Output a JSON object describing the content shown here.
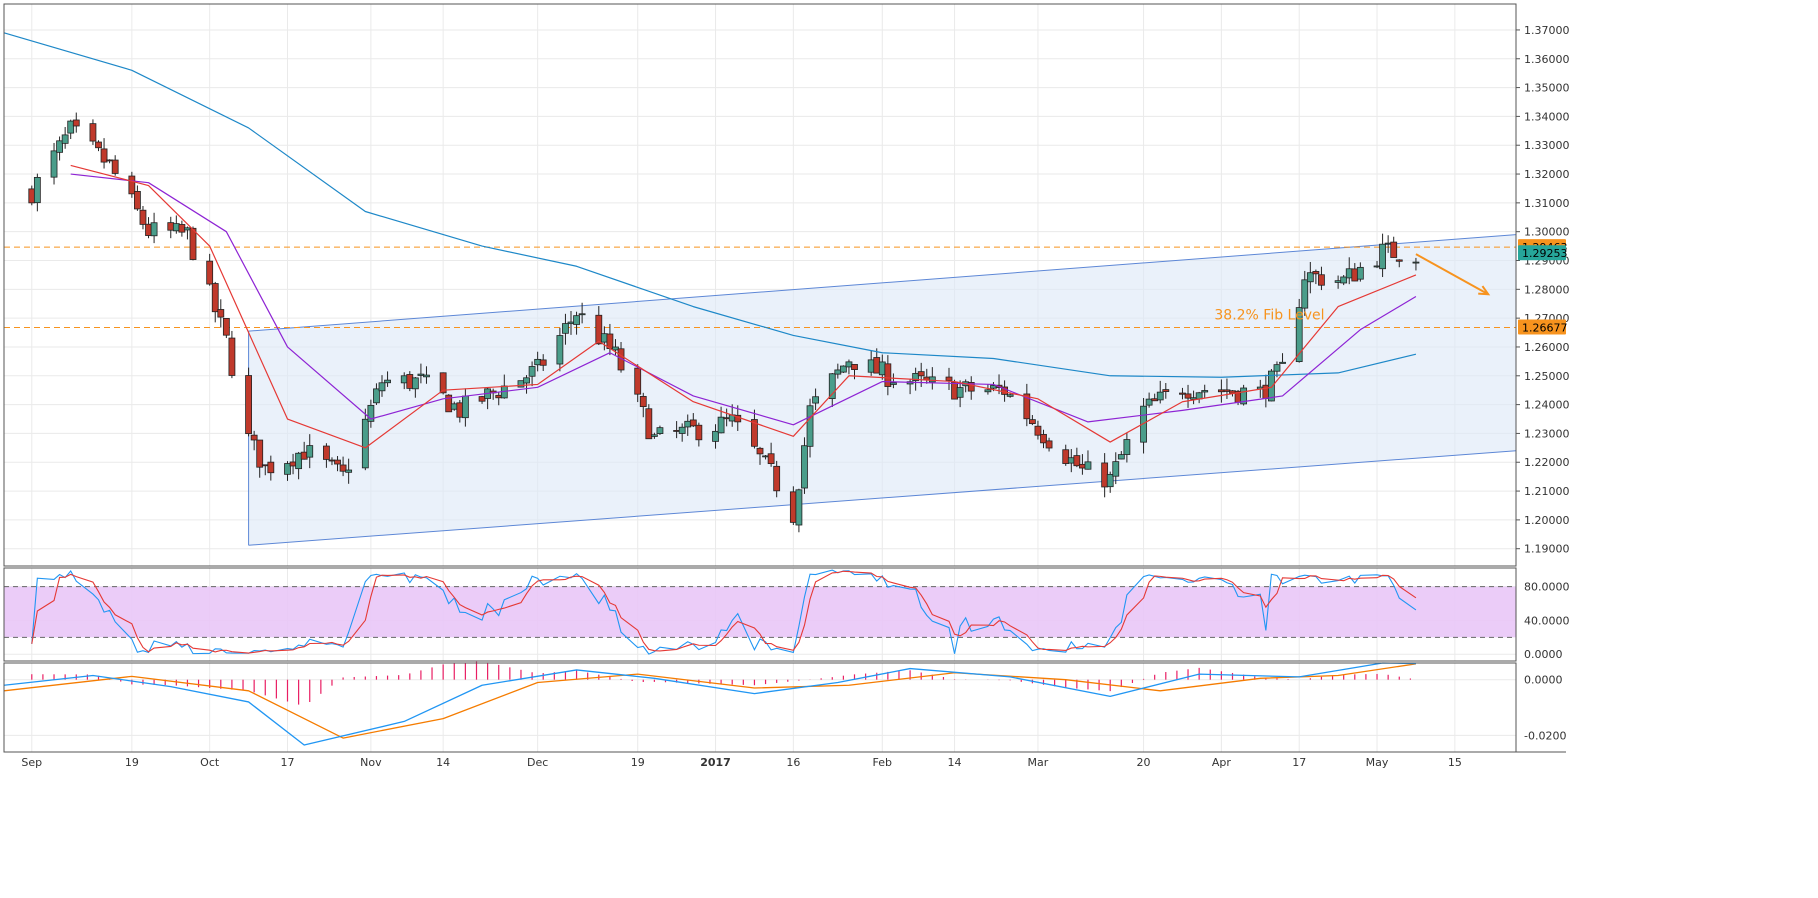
{
  "chart_data": {
    "type": "candlestick",
    "panes": [
      "price",
      "stochastic",
      "macd"
    ],
    "x_axis": {
      "tick_labels": [
        {
          "label": "Sep",
          "date": "2016-09-01"
        },
        {
          "label": "19",
          "date": "2016-09-19"
        },
        {
          "label": "Oct",
          "date": "2016-10-03"
        },
        {
          "label": "17",
          "date": "2016-10-17"
        },
        {
          "label": "Nov",
          "date": "2016-11-01"
        },
        {
          "label": "14",
          "date": "2016-11-14"
        },
        {
          "label": "Dec",
          "date": "2016-12-01"
        },
        {
          "label": "19",
          "date": "2016-12-19"
        },
        {
          "label": "2017",
          "date": "2017-01-02",
          "bold": true
        },
        {
          "label": "16",
          "date": "2017-01-16"
        },
        {
          "label": "Feb",
          "date": "2017-02-01"
        },
        {
          "label": "14",
          "date": "2017-02-14"
        },
        {
          "label": "Mar",
          "date": "2017-03-01"
        },
        {
          "label": "20",
          "date": "2017-03-20"
        },
        {
          "label": "Apr",
          "date": "2017-04-03"
        },
        {
          "label": "17",
          "date": "2017-04-17"
        },
        {
          "label": "May",
          "date": "2017-05-01"
        },
        {
          "label": "15",
          "date": "2017-05-15"
        }
      ],
      "range": [
        "2016-08-27",
        "2017-05-26"
      ]
    },
    "price_pane": {
      "y_range": [
        1.184,
        1.379
      ],
      "tick_labels": [
        "1.19000",
        "1.20000",
        "1.21000",
        "1.22000",
        "1.23000",
        "1.24000",
        "1.25000",
        "1.26000",
        "1.27000",
        "1.28000",
        "1.29000",
        "1.30000",
        "1.31000",
        "1.32000",
        "1.33000",
        "1.34000",
        "1.35000",
        "1.36000",
        "1.37000"
      ],
      "price_tags": [
        {
          "label": "1.29463",
          "value": 1.29463,
          "color": "#f7931e"
        },
        {
          "label": "1.26677",
          "value": 1.26677,
          "color": "#f7931e"
        },
        {
          "label": "1.29253",
          "value": 1.29253,
          "color": "#26a69a"
        }
      ],
      "horizontal_lines": [
        {
          "value": 1.29463,
          "color": "#f7931e",
          "style": "dashed"
        },
        {
          "value": 1.26677,
          "color": "#f7931e",
          "style": "dashed"
        }
      ],
      "annotation": {
        "text": "38.2% Fib Level",
        "color": "#f7931e"
      },
      "channel": {
        "upper": [
          {
            "date": "2016-10-10",
            "value": 1.2655
          },
          {
            "date": "2017-05-26",
            "value": 1.299
          }
        ],
        "lower": [
          {
            "date": "2016-10-10",
            "value": 1.1912
          },
          {
            "date": "2017-05-26",
            "value": 1.224
          }
        ],
        "fill": "#dce8f7",
        "stroke": "#5d87d6"
      },
      "arrow": {
        "from": {
          "date": "2017-05-08",
          "value": 1.2922
        },
        "to": {
          "date": "2017-05-21",
          "value": 1.2783
        },
        "color": "#f7931e"
      },
      "candles_weekly_anchor": [
        {
          "date": "2016-09-01",
          "close": 1.314
        },
        {
          "date": "2016-09-08",
          "close": 1.335
        },
        {
          "date": "2016-09-15",
          "close": 1.323
        },
        {
          "date": "2016-09-22",
          "close": 1.3
        },
        {
          "date": "2016-09-29",
          "close": 1.299
        },
        {
          "date": "2016-10-06",
          "close": 1.262
        },
        {
          "date": "2016-10-10",
          "close": 1.228
        },
        {
          "date": "2016-10-13",
          "close": 1.218
        },
        {
          "date": "2016-10-20",
          "close": 1.224
        },
        {
          "date": "2016-10-27",
          "close": 1.215
        },
        {
          "date": "2016-11-03",
          "close": 1.248
        },
        {
          "date": "2016-11-10",
          "close": 1.248
        },
        {
          "date": "2016-11-17",
          "close": 1.238
        },
        {
          "date": "2016-11-24",
          "close": 1.245
        },
        {
          "date": "2016-12-01",
          "close": 1.252
        },
        {
          "date": "2016-12-08",
          "close": 1.272
        },
        {
          "date": "2016-12-15",
          "close": 1.257
        },
        {
          "date": "2016-12-22",
          "close": 1.228
        },
        {
          "date": "2016-12-29",
          "close": 1.231
        },
        {
          "date": "2017-01-05",
          "close": 1.234
        },
        {
          "date": "2017-01-12",
          "close": 1.216
        },
        {
          "date": "2017-01-16",
          "close": 1.202
        },
        {
          "date": "2017-01-19",
          "close": 1.238
        },
        {
          "date": "2017-01-26",
          "close": 1.256
        },
        {
          "date": "2017-02-02",
          "close": 1.25
        },
        {
          "date": "2017-02-09",
          "close": 1.247
        },
        {
          "date": "2017-02-16",
          "close": 1.245
        },
        {
          "date": "2017-02-23",
          "close": 1.245
        },
        {
          "date": "2017-03-02",
          "close": 1.23
        },
        {
          "date": "2017-03-09",
          "close": 1.217
        },
        {
          "date": "2017-03-14",
          "close": 1.214
        },
        {
          "date": "2017-03-20",
          "close": 1.238
        },
        {
          "date": "2017-03-27",
          "close": 1.246
        },
        {
          "date": "2017-04-03",
          "close": 1.245
        },
        {
          "date": "2017-04-10",
          "close": 1.244
        },
        {
          "date": "2017-04-14",
          "close": 1.252
        },
        {
          "date": "2017-04-18",
          "close": 1.285
        },
        {
          "date": "2017-04-25",
          "close": 1.283
        },
        {
          "date": "2017-05-02",
          "close": 1.293
        },
        {
          "date": "2017-05-08",
          "close": 1.2925
        }
      ],
      "ema_fast": {
        "color": "#e53935",
        "points": [
          {
            "date": "2016-09-08",
            "value": 1.323
          },
          {
            "date": "2016-09-22",
            "value": 1.316
          },
          {
            "date": "2016-10-03",
            "value": 1.295
          },
          {
            "date": "2016-10-10",
            "value": 1.265
          },
          {
            "date": "2016-10-17",
            "value": 1.235
          },
          {
            "date": "2016-10-31",
            "value": 1.225
          },
          {
            "date": "2016-11-14",
            "value": 1.245
          },
          {
            "date": "2016-12-01",
            "value": 1.247
          },
          {
            "date": "2016-12-12",
            "value": 1.262
          },
          {
            "date": "2016-12-29",
            "value": 1.241
          },
          {
            "date": "2017-01-16",
            "value": 1.229
          },
          {
            "date": "2017-01-26",
            "value": 1.25
          },
          {
            "date": "2017-02-14",
            "value": 1.248
          },
          {
            "date": "2017-03-01",
            "value": 1.242
          },
          {
            "date": "2017-03-14",
            "value": 1.227
          },
          {
            "date": "2017-03-27",
            "value": 1.241
          },
          {
            "date": "2017-04-12",
            "value": 1.246
          },
          {
            "date": "2017-04-24",
            "value": 1.274
          },
          {
            "date": "2017-05-08",
            "value": 1.285
          }
        ]
      },
      "ema_mid": {
        "color": "#8e24d4",
        "points": [
          {
            "date": "2016-09-08",
            "value": 1.32
          },
          {
            "date": "2016-09-22",
            "value": 1.317
          },
          {
            "date": "2016-10-06",
            "value": 1.3
          },
          {
            "date": "2016-10-17",
            "value": 1.26
          },
          {
            "date": "2016-11-01",
            "value": 1.235
          },
          {
            "date": "2016-11-14",
            "value": 1.242
          },
          {
            "date": "2016-12-01",
            "value": 1.246
          },
          {
            "date": "2016-12-14",
            "value": 1.258
          },
          {
            "date": "2016-12-29",
            "value": 1.243
          },
          {
            "date": "2017-01-16",
            "value": 1.233
          },
          {
            "date": "2017-02-01",
            "value": 1.248
          },
          {
            "date": "2017-02-21",
            "value": 1.247
          },
          {
            "date": "2017-03-10",
            "value": 1.234
          },
          {
            "date": "2017-03-27",
            "value": 1.238
          },
          {
            "date": "2017-04-14",
            "value": 1.243
          },
          {
            "date": "2017-04-28",
            "value": 1.266
          },
          {
            "date": "2017-05-08",
            "value": 1.2775
          }
        ]
      },
      "sma_slow": {
        "color": "#1e88c8",
        "points": [
          {
            "date": "2016-08-27",
            "value": 1.369
          },
          {
            "date": "2016-09-19",
            "value": 1.356
          },
          {
            "date": "2016-10-10",
            "value": 1.336
          },
          {
            "date": "2016-10-31",
            "value": 1.307
          },
          {
            "date": "2016-11-21",
            "value": 1.295
          },
          {
            "date": "2016-12-08",
            "value": 1.288
          },
          {
            "date": "2016-12-29",
            "value": 1.274
          },
          {
            "date": "2017-01-16",
            "value": 1.264
          },
          {
            "date": "2017-02-01",
            "value": 1.258
          },
          {
            "date": "2017-02-21",
            "value": 1.256
          },
          {
            "date": "2017-03-14",
            "value": 1.25
          },
          {
            "date": "2017-04-03",
            "value": 1.2495
          },
          {
            "date": "2017-04-24",
            "value": 1.251
          },
          {
            "date": "2017-05-08",
            "value": 1.2575
          }
        ]
      }
    },
    "stochastic_pane": {
      "y_range": [
        -8,
        102
      ],
      "tick_labels": [
        "0.0000",
        "40.0000",
        "80.0000"
      ],
      "band": {
        "low": 20,
        "high": 80,
        "fill": "#e9c6f7"
      },
      "k_line_color": "#2196f3",
      "d_line_color": "#e53935"
    },
    "macd_pane": {
      "y_range": [
        -0.026,
        0.006
      ],
      "tick_labels": [
        "-0.0200",
        "0.0000"
      ],
      "macd_line": {
        "color": "#2196f3",
        "points": [
          {
            "date": "2016-08-27",
            "value": -0.002
          },
          {
            "date": "2016-09-12",
            "value": 0.0015
          },
          {
            "date": "2016-09-26",
            "value": -0.0025
          },
          {
            "date": "2016-10-10",
            "value": -0.008
          },
          {
            "date": "2016-10-20",
            "value": -0.0235
          },
          {
            "date": "2016-11-07",
            "value": -0.015
          },
          {
            "date": "2016-11-21",
            "value": -0.002
          },
          {
            "date": "2016-12-08",
            "value": 0.0035
          },
          {
            "date": "2016-12-22",
            "value": 0.0005
          },
          {
            "date": "2017-01-09",
            "value": -0.005
          },
          {
            "date": "2017-01-24",
            "value": -0.001
          },
          {
            "date": "2017-02-06",
            "value": 0.004
          },
          {
            "date": "2017-02-24",
            "value": 0.001
          },
          {
            "date": "2017-03-14",
            "value": -0.006
          },
          {
            "date": "2017-03-30",
            "value": 0.002
          },
          {
            "date": "2017-04-17",
            "value": 0.001
          },
          {
            "date": "2017-05-02",
            "value": 0.006
          },
          {
            "date": "2017-05-08",
            "value": 0.0058
          }
        ]
      },
      "signal_line": {
        "color": "#f57c00",
        "points": [
          {
            "date": "2016-08-27",
            "value": -0.004
          },
          {
            "date": "2016-09-19",
            "value": 0.0012
          },
          {
            "date": "2016-10-10",
            "value": -0.004
          },
          {
            "date": "2016-10-27",
            "value": -0.021
          },
          {
            "date": "2016-11-14",
            "value": -0.014
          },
          {
            "date": "2016-12-01",
            "value": -0.001
          },
          {
            "date": "2016-12-19",
            "value": 0.002
          },
          {
            "date": "2017-01-09",
            "value": -0.003
          },
          {
            "date": "2017-01-26",
            "value": -0.002
          },
          {
            "date": "2017-02-14",
            "value": 0.0025
          },
          {
            "date": "2017-03-06",
            "value": 0.0
          },
          {
            "date": "2017-03-23",
            "value": -0.004
          },
          {
            "date": "2017-04-10",
            "value": 0.0005
          },
          {
            "date": "2017-04-24",
            "value": 0.0015
          },
          {
            "date": "2017-05-08",
            "value": 0.0057
          }
        ]
      },
      "histogram_color": "#e91e63"
    },
    "colors": {
      "bull": "#4a9d8a",
      "bear": "#c0392b",
      "grid": "#eaeaea"
    }
  }
}
